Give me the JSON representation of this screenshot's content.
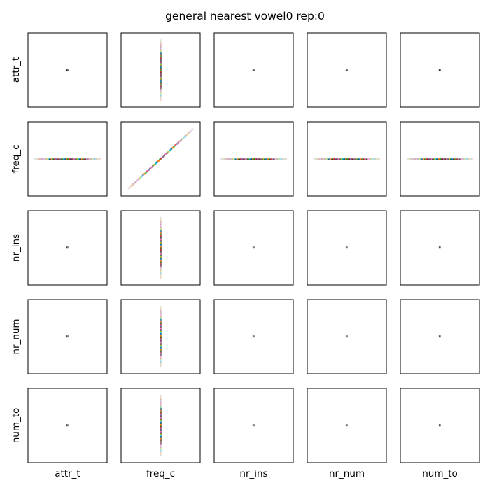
{
  "title": "general nearest vowel0 rep:0",
  "variables": [
    "attr_t",
    "freq_c",
    "nr_ins",
    "nr_num",
    "num_to"
  ],
  "chart_data": {
    "type": "scatter",
    "kind": "pair-plot grid",
    "rows": 5,
    "cols": 5,
    "row_labels": [
      "attr_t",
      "freq_c",
      "nr_ins",
      "nr_num",
      "num_to"
    ],
    "col_labels": [
      "attr_t",
      "freq_c",
      "nr_ins",
      "nr_num",
      "num_to"
    ],
    "ticks": "none",
    "grid": false,
    "point_colors": [
      "#1f77b4",
      "#ff7f0e",
      "#2ca02c",
      "#d62728",
      "#9467bd",
      "#8c564b",
      "#e377c2",
      "#7f7f7f",
      "#bcbd22",
      "#17becf"
    ],
    "panels": [
      {
        "row": "attr_t",
        "col": "attr_t",
        "pattern": "cluster"
      },
      {
        "row": "attr_t",
        "col": "freq_c",
        "pattern": "vertical-spread"
      },
      {
        "row": "attr_t",
        "col": "nr_ins",
        "pattern": "cluster"
      },
      {
        "row": "attr_t",
        "col": "nr_num",
        "pattern": "cluster"
      },
      {
        "row": "attr_t",
        "col": "num_to",
        "pattern": "cluster"
      },
      {
        "row": "freq_c",
        "col": "attr_t",
        "pattern": "horizontal-spread"
      },
      {
        "row": "freq_c",
        "col": "freq_c",
        "pattern": "diagonal"
      },
      {
        "row": "freq_c",
        "col": "nr_ins",
        "pattern": "horizontal-spread"
      },
      {
        "row": "freq_c",
        "col": "nr_num",
        "pattern": "horizontal-spread"
      },
      {
        "row": "freq_c",
        "col": "num_to",
        "pattern": "horizontal-spread"
      },
      {
        "row": "nr_ins",
        "col": "attr_t",
        "pattern": "cluster"
      },
      {
        "row": "nr_ins",
        "col": "freq_c",
        "pattern": "vertical-spread"
      },
      {
        "row": "nr_ins",
        "col": "nr_ins",
        "pattern": "cluster"
      },
      {
        "row": "nr_ins",
        "col": "nr_num",
        "pattern": "cluster"
      },
      {
        "row": "nr_ins",
        "col": "num_to",
        "pattern": "cluster"
      },
      {
        "row": "nr_num",
        "col": "attr_t",
        "pattern": "cluster"
      },
      {
        "row": "nr_num",
        "col": "freq_c",
        "pattern": "vertical-spread"
      },
      {
        "row": "nr_num",
        "col": "nr_ins",
        "pattern": "cluster"
      },
      {
        "row": "nr_num",
        "col": "nr_num",
        "pattern": "cluster"
      },
      {
        "row": "nr_num",
        "col": "num_to",
        "pattern": "cluster"
      },
      {
        "row": "num_to",
        "col": "attr_t",
        "pattern": "cluster"
      },
      {
        "row": "num_to",
        "col": "freq_c",
        "pattern": "vertical-spread"
      },
      {
        "row": "num_to",
        "col": "nr_ins",
        "pattern": "cluster"
      },
      {
        "row": "num_to",
        "col": "nr_num",
        "pattern": "cluster"
      },
      {
        "row": "num_to",
        "col": "num_to",
        "pattern": "cluster"
      }
    ]
  }
}
